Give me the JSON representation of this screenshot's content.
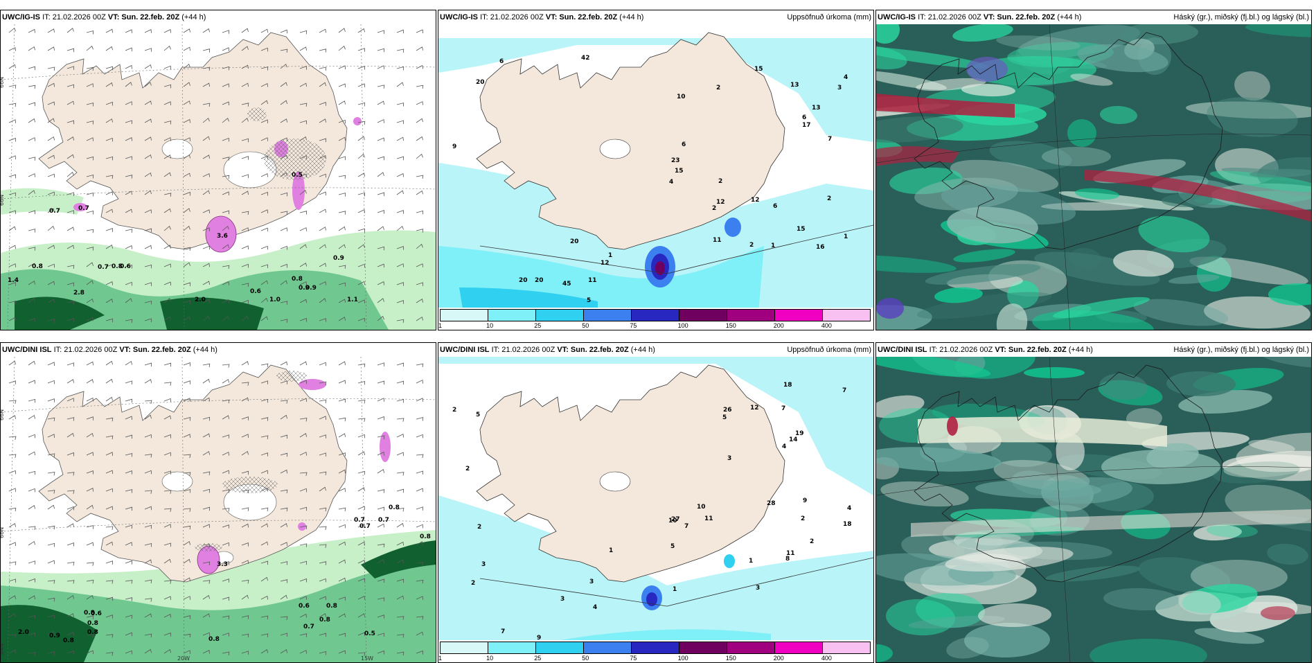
{
  "panels": [
    {
      "model": "UWC/IG-IS",
      "it": "IT: 21.02.2026 00Z",
      "vt_label": "VT:",
      "vt": "Sun. 22.feb. 20Z",
      "lead": "(+44 h)",
      "right": ""
    },
    {
      "model": "UWC/IG-IS",
      "it": "IT: 21.02.2026 00Z",
      "vt_label": "VT:",
      "vt": "Sun. 22.feb. 20Z",
      "lead": "(+44 h)",
      "right": "Uppsöfnuð úrkoma (mm)"
    },
    {
      "model": "UWC/IG-IS",
      "it": "IT: 21.02.2026 00Z",
      "vt_label": "VT:",
      "vt": "Sun. 22.feb. 20Z",
      "lead": "(+44 h)",
      "right": "Háský (gr.), miðský (fj.bl.) og lágský (bl.)"
    },
    {
      "model": "UWC/DINI ISL",
      "it": "IT: 21.02.2026 00Z",
      "vt_label": "VT:",
      "vt": "Sun. 22.feb. 20Z",
      "lead": "(+44 h)",
      "right": ""
    },
    {
      "model": "UWC/DINI ISL",
      "it": "IT: 21.02.2026 00Z",
      "vt_label": "VT:",
      "vt": "Sun. 22.feb. 20Z",
      "lead": "(+44 h)",
      "right": "Uppsöfnuð úrkoma (mm)"
    },
    {
      "model": "UWC/DINI ISL",
      "it": "IT: 21.02.2026 00Z",
      "vt_label": "VT:",
      "vt": "Sun. 22.feb. 20Z",
      "lead": "(+44 h)",
      "right": "Háský (gr.), miðský (fj.bl.) og lágský (bl.)"
    }
  ],
  "axis": {
    "lat_66": "66N",
    "lon_20": "20W",
    "lon_15": "15W",
    "lat_64": "64N"
  },
  "colorbar": {
    "colors": [
      "#d8f8f8",
      "#80f0f8",
      "#30d0f0",
      "#3c80f0",
      "#2828c0",
      "#700060",
      "#a00080",
      "#f000c0",
      "#f8c0f0"
    ],
    "ticks": [
      "1",
      "10",
      "25",
      "50",
      "75",
      "100",
      "150",
      "200",
      "400"
    ]
  },
  "colors": {
    "land": "#f4e8dc",
    "sea": "#ffffff",
    "precip_light": "#c8f0c8",
    "precip_mid": "#70c890",
    "precip_dark": "#106030",
    "snow": "#e080e0",
    "cloud_dark": "#2a5e58",
    "cloud_teal": "#10c890",
    "cloud_red": "#b02040",
    "accum_light": "#b8f4f8"
  },
  "precip_labels_top": [
    "0.7",
    "0.7",
    "0.8",
    "0.7",
    "0.8",
    "0.6",
    "2.8",
    "1.4",
    "0.6",
    "2.0",
    "0.8",
    "0.9",
    "0.9",
    "1.0",
    "1.1",
    "0.9",
    "0.5",
    "3.6"
  ],
  "precip_labels_bottom": [
    "0.7",
    "0.7",
    "0.8",
    "0.8",
    "0.7",
    "2.0",
    "0.9",
    "0.8",
    "0.8",
    "0.8",
    "0.8",
    "0.6",
    "0.8",
    "0.6",
    "0.8",
    "0.7",
    "0.8",
    "0.5",
    "3.3"
  ],
  "accum_labels_top": [
    "9",
    "1",
    "5",
    "12",
    "11",
    "6",
    "20",
    "20",
    "20",
    "20",
    "45",
    "42",
    "6",
    "2",
    "3",
    "2",
    "4",
    "4",
    "2",
    "2",
    "1",
    "2",
    "7",
    "6",
    "12",
    "16",
    "13",
    "15",
    "13",
    "6",
    "11",
    "15",
    "23",
    "17",
    "12",
    "15",
    "10",
    "1"
  ],
  "accum_labels_bottom": [
    "2",
    "3",
    "3",
    "7",
    "9",
    "1",
    "2",
    "3",
    "5",
    "4",
    "2",
    "2",
    "1",
    "7",
    "11",
    "14",
    "19",
    "26",
    "27",
    "18",
    "10",
    "7",
    "4",
    "5",
    "5",
    "11",
    "12",
    "10",
    "8",
    "9",
    "7",
    "3",
    "18",
    "28",
    "3",
    "2",
    "1",
    "4",
    "2"
  ]
}
